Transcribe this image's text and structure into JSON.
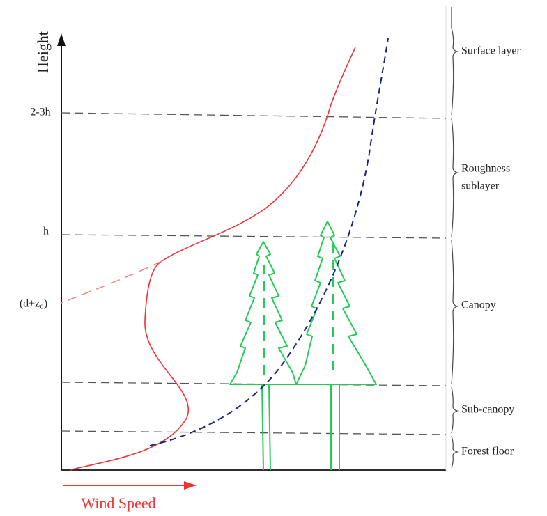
{
  "axes": {
    "y_label": "Height",
    "x_label": "Wind Speed"
  },
  "height_marks": [
    "2-3h",
    "h",
    "(d+z₀)"
  ],
  "layers": [
    {
      "lines": [
        "Surface layer"
      ]
    },
    {
      "lines": [
        "Roughness",
        "sublayer"
      ]
    },
    {
      "lines": [
        "Canopy"
      ]
    },
    {
      "lines": [
        "Sub-canopy"
      ]
    },
    {
      "lines": [
        "Forest floor"
      ]
    }
  ]
}
